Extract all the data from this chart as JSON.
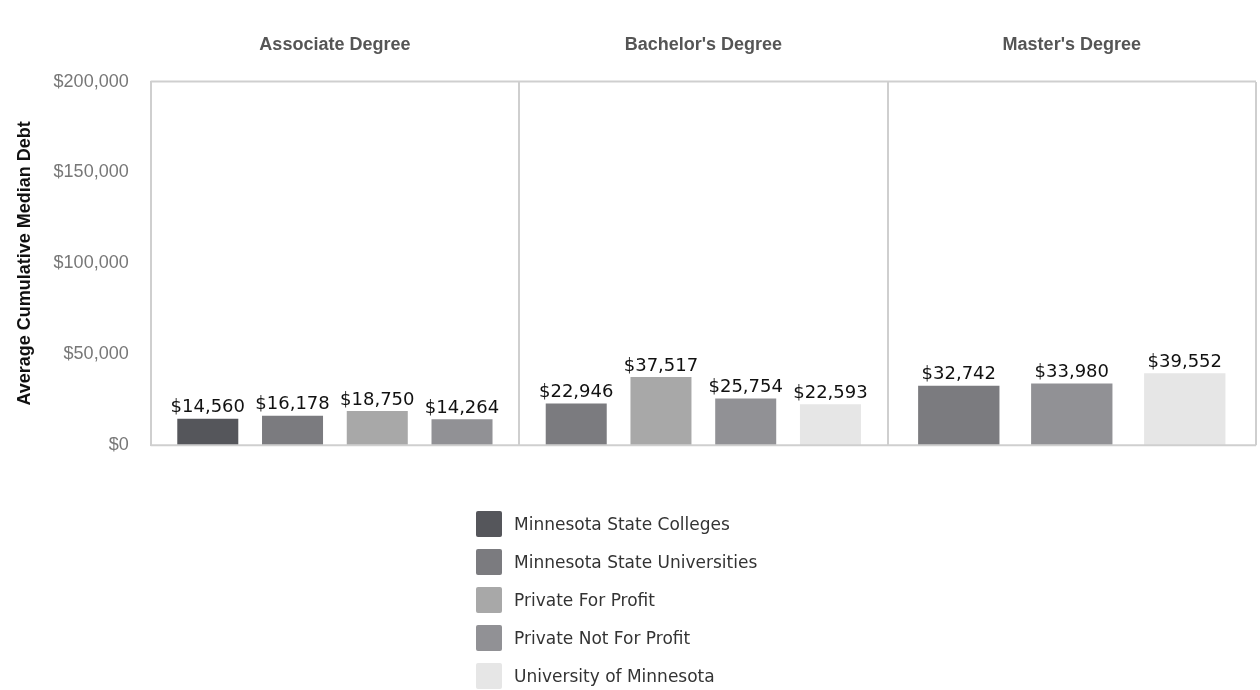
{
  "chart_data": {
    "type": "bar",
    "ylabel": "Average Cumulative Median Debt",
    "categories": [
      "Associate Degree",
      "Bachelor's Degree",
      "Master's Degree"
    ],
    "series": [
      {
        "name": "Minnesota State Colleges",
        "color": "#55565b",
        "values": [
          14560,
          null,
          null
        ],
        "value_labels": [
          "$14,560",
          null,
          null
        ]
      },
      {
        "name": "Minnesota State Universities",
        "color": "#7b7b7f",
        "values": [
          16178,
          22946,
          32742
        ],
        "value_labels": [
          "$16,178",
          "$22,946",
          "$32,742"
        ]
      },
      {
        "name": "Private For Profit",
        "color": "#a8a8a8",
        "values": [
          18750,
          37517,
          null
        ],
        "value_labels": [
          "$18,750",
          "$37,517",
          null
        ]
      },
      {
        "name": "Private Not For Profit",
        "color": "#919195",
        "values": [
          14264,
          25754,
          33980
        ],
        "value_labels": [
          "$14,264",
          "$25,754",
          "$33,980"
        ]
      },
      {
        "name": "University of Minnesota",
        "color": "#e6e6e6",
        "values": [
          null,
          22593,
          39552
        ],
        "value_labels": [
          null,
          "$22,593",
          "$39,552"
        ]
      }
    ],
    "ylim": [
      0,
      200000
    ],
    "yticks": [
      {
        "value": 0,
        "label": "$0"
      },
      {
        "value": 50000,
        "label": "$50,000"
      },
      {
        "value": 100000,
        "label": "$100,000"
      },
      {
        "value": 150000,
        "label": "$150,000"
      },
      {
        "value": 200000,
        "label": "$200,000"
      }
    ],
    "legend": "bottom"
  }
}
